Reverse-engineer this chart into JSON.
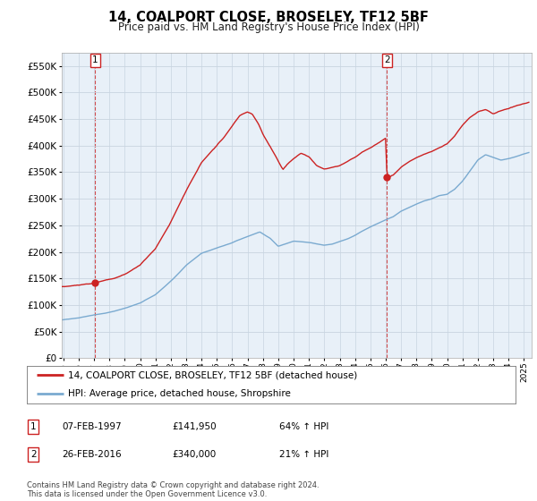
{
  "title": "14, COALPORT CLOSE, BROSELEY, TF12 5BF",
  "subtitle": "Price paid vs. HM Land Registry's House Price Index (HPI)",
  "ylim": [
    0,
    575000
  ],
  "yticks": [
    0,
    50000,
    100000,
    150000,
    200000,
    250000,
    300000,
    350000,
    400000,
    450000,
    500000,
    550000
  ],
  "sale1_year": 1997.083,
  "sale1_price": 141950,
  "sale2_year": 2016.083,
  "sale2_price": 340000,
  "line_color_property": "#cc2222",
  "line_color_hpi": "#7aaad0",
  "chart_bg": "#e8f0f8",
  "legend_property": "14, COALPORT CLOSE, BROSELEY, TF12 5BF (detached house)",
  "legend_hpi": "HPI: Average price, detached house, Shropshire",
  "table_row1": [
    "1",
    "07-FEB-1997",
    "£141,950",
    "64% ↑ HPI"
  ],
  "table_row2": [
    "2",
    "26-FEB-2016",
    "£340,000",
    "21% ↑ HPI"
  ],
  "footnote": "Contains HM Land Registry data © Crown copyright and database right 2024.\nThis data is licensed under the Open Government Licence v3.0.",
  "xstart": 1994.9,
  "xend": 2025.5,
  "background_color": "#ffffff",
  "grid_color": "#c8d4e0"
}
